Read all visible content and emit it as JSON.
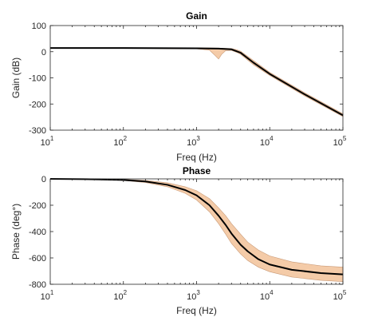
{
  "chart_data": [
    {
      "type": "line",
      "title": "Gain",
      "xlabel": "Freq (Hz)",
      "ylabel": "Gain (dB)",
      "xscale": "log",
      "xlim": [
        10,
        100000
      ],
      "ylim": [
        -300,
        100
      ],
      "xticks": [
        10,
        100,
        1000,
        10000,
        100000
      ],
      "yticks": [
        100,
        0,
        -100,
        -200,
        -300
      ],
      "ytick_labels": [
        "100",
        "0",
        "-100",
        "-200",
        "-300"
      ],
      "grid": false,
      "colors": {
        "line": "#000000",
        "band_fill": "#f4cba8",
        "band_edge": "#c99a77"
      },
      "series": [
        {
          "role": "mean",
          "x": [
            10,
            100,
            1000,
            2000,
            3000,
            3500,
            4000,
            6000,
            10000,
            30000,
            100000
          ],
          "values": [
            14,
            14,
            13,
            12,
            9,
            2,
            -4,
            -42,
            -85,
            -163,
            -243
          ]
        },
        {
          "role": "upper",
          "x": [
            10,
            100,
            1000,
            2000,
            3000,
            3500,
            4000,
            6000,
            10000,
            30000,
            100000
          ],
          "values": [
            15,
            15,
            15,
            14,
            12,
            8,
            2,
            -34,
            -79,
            -157,
            -237
          ]
        },
        {
          "role": "lower",
          "x": [
            10,
            100,
            1000,
            1500,
            1800,
            2000,
            2200,
            2500,
            3000,
            3500,
            4000,
            6000,
            10000,
            30000,
            100000
          ],
          "values": [
            13,
            13,
            11,
            6,
            -15,
            -28,
            -10,
            4,
            5,
            -2,
            -10,
            -50,
            -91,
            -169,
            -248
          ]
        }
      ]
    },
    {
      "type": "line",
      "title": "Phase",
      "xlabel": "Freq (Hz)",
      "ylabel": "Phase (deg°)",
      "xscale": "log",
      "xlim": [
        10,
        100000
      ],
      "ylim": [
        -800,
        0
      ],
      "xticks": [
        10,
        100,
        1000,
        10000,
        100000
      ],
      "yticks": [
        0,
        -200,
        -400,
        -600,
        -800
      ],
      "ytick_labels": [
        "0",
        "-200",
        "-400",
        "-600",
        "-800"
      ],
      "grid": false,
      "colors": {
        "line": "#000000",
        "band_fill": "#f4cba8",
        "band_edge": "#c99a77"
      },
      "series": [
        {
          "role": "mean",
          "x": [
            10,
            30,
            100,
            200,
            400,
            700,
            1000,
            1500,
            2000,
            2500,
            3000,
            4000,
            5000,
            7000,
            10000,
            20000,
            50000,
            100000
          ],
          "values": [
            0,
            -2,
            -8,
            -20,
            -45,
            -85,
            -125,
            -200,
            -280,
            -350,
            -415,
            -500,
            -550,
            -610,
            -650,
            -690,
            -715,
            -725
          ]
        },
        {
          "role": "upper",
          "x": [
            10,
            30,
            100,
            200,
            400,
            700,
            1000,
            1500,
            2000,
            2500,
            3000,
            4000,
            5000,
            7000,
            10000,
            20000,
            50000,
            100000
          ],
          "values": [
            0,
            -1,
            -4,
            -12,
            -30,
            -60,
            -90,
            -150,
            -220,
            -280,
            -340,
            -420,
            -480,
            -540,
            -585,
            -630,
            -660,
            -670
          ]
        },
        {
          "role": "lower",
          "x": [
            10,
            30,
            100,
            200,
            400,
            700,
            1000,
            1500,
            2000,
            2500,
            3000,
            4000,
            5000,
            7000,
            10000,
            20000,
            50000,
            100000
          ],
          "values": [
            0,
            -3,
            -12,
            -28,
            -60,
            -110,
            -160,
            -250,
            -340,
            -420,
            -490,
            -570,
            -620,
            -670,
            -705,
            -745,
            -770,
            -780
          ]
        }
      ]
    }
  ]
}
